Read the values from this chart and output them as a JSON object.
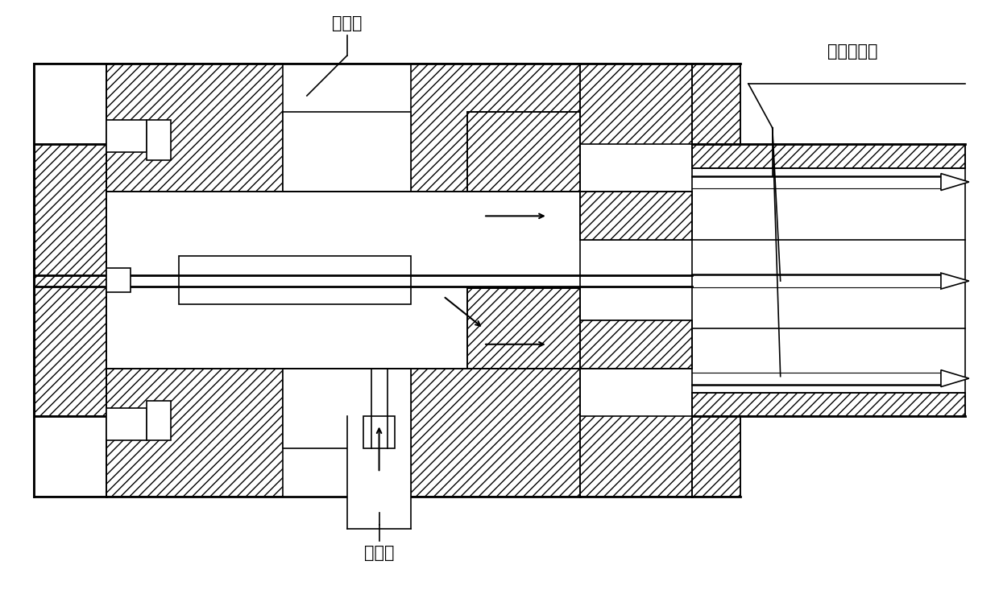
{
  "label_yangji": "阳极体",
  "label_multi": "多针型阳极",
  "label_inlet": "进气孔",
  "bg_color": "#ffffff",
  "line_color": "#000000",
  "line_width": 1.2,
  "thick_line": 2.0,
  "fig_width": 12.4,
  "fig_height": 7.38,
  "dpi": 100
}
